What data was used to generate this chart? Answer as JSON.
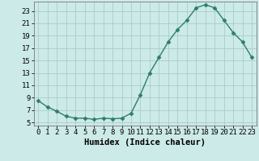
{
  "x": [
    0,
    1,
    2,
    3,
    4,
    5,
    6,
    7,
    8,
    9,
    10,
    11,
    12,
    13,
    14,
    15,
    16,
    17,
    18,
    19,
    20,
    21,
    22,
    23
  ],
  "y": [
    8.5,
    7.5,
    6.8,
    6.0,
    5.7,
    5.7,
    5.5,
    5.7,
    5.6,
    5.7,
    6.5,
    9.5,
    13.0,
    15.5,
    18.0,
    20.0,
    21.5,
    23.5,
    24.0,
    23.5,
    21.5,
    19.5,
    18.0,
    15.5
  ],
  "xlabel": "Humidex (Indice chaleur)",
  "xticks": [
    0,
    1,
    2,
    3,
    4,
    5,
    6,
    7,
    8,
    9,
    10,
    11,
    12,
    13,
    14,
    15,
    16,
    17,
    18,
    19,
    20,
    21,
    22,
    23
  ],
  "yticks": [
    5,
    7,
    9,
    11,
    13,
    15,
    17,
    19,
    21,
    23
  ],
  "ylim": [
    4.5,
    24.5
  ],
  "xlim": [
    -0.5,
    23.5
  ],
  "line_color": "#2e7d6e",
  "marker": "D",
  "marker_size": 2.5,
  "bg_color": "#cceae8",
  "grid_color": "#aaccca",
  "xlabel_fontsize": 7.5,
  "tick_fontsize": 6.5
}
